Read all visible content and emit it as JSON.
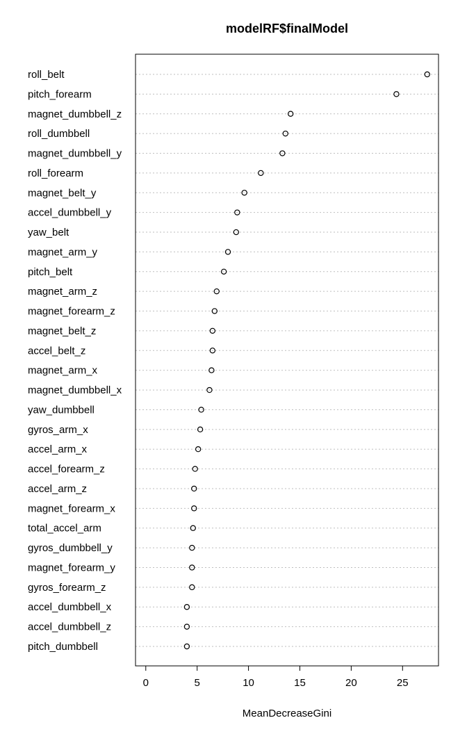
{
  "chart_data": {
    "type": "scatter",
    "title": "modelRF$finalModel",
    "xlabel": "MeanDecreaseGini",
    "ylabel": "",
    "xlim": [
      -1,
      28.5
    ],
    "xticks": [
      0,
      5,
      10,
      15,
      20,
      25
    ],
    "grid": "horizontal dotted",
    "legend": "none",
    "categories": [
      "roll_belt",
      "pitch_forearm",
      "magnet_dumbbell_z",
      "roll_dumbbell",
      "magnet_dumbbell_y",
      "roll_forearm",
      "magnet_belt_y",
      "accel_dumbbell_y",
      "yaw_belt",
      "magnet_arm_y",
      "pitch_belt",
      "magnet_arm_z",
      "magnet_forearm_z",
      "magnet_belt_z",
      "accel_belt_z",
      "magnet_arm_x",
      "magnet_dumbbell_x",
      "yaw_dumbbell",
      "gyros_arm_x",
      "accel_arm_x",
      "accel_forearm_z",
      "accel_arm_z",
      "magnet_forearm_x",
      "total_accel_arm",
      "gyros_dumbbell_y",
      "magnet_forearm_y",
      "gyros_forearm_z",
      "accel_dumbbell_x",
      "accel_dumbbell_z",
      "pitch_dumbbell"
    ],
    "values": [
      27.4,
      24.4,
      14.1,
      13.6,
      13.3,
      11.2,
      9.6,
      8.9,
      8.8,
      8.0,
      7.6,
      6.9,
      6.7,
      6.5,
      6.5,
      6.4,
      6.2,
      5.4,
      5.3,
      5.1,
      4.8,
      4.7,
      4.7,
      4.6,
      4.5,
      4.5,
      4.5,
      4.0,
      4.0,
      4.0
    ]
  }
}
